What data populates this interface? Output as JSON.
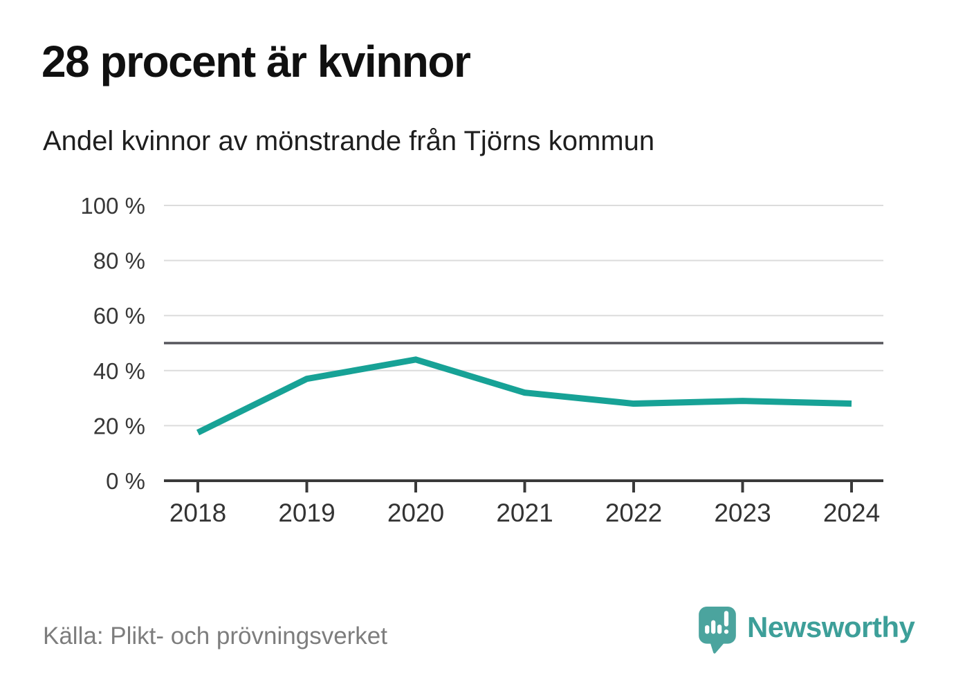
{
  "header": {
    "title": "28 procent är kvinnor",
    "subtitle": "Andel kvinnor av mönstrande från Tjörns kommun"
  },
  "footer": {
    "source": "Källa: Plikt- och prövningsverket",
    "brand_name": "Newsworthy"
  },
  "colors": {
    "line": "#17a296",
    "grid": "#dcdcdc",
    "reference_line": "#56565c",
    "axis": "#3a3a3a",
    "tick_text": "#383838",
    "title_text": "#101010",
    "subtitle_text": "#1e1e1e",
    "source_text": "#7d7d7d",
    "brand_teal": "#3d9f99",
    "brand_icon_teal": "#4ba49e"
  },
  "chart_data": {
    "type": "line",
    "title": "28 procent är kvinnor",
    "subtitle": "Andel kvinnor av mönstrande från Tjörns kommun",
    "categories": [
      "2018",
      "2019",
      "2020",
      "2021",
      "2022",
      "2023",
      "2024"
    ],
    "series": [
      {
        "name": "Andel kvinnor av mönstrande",
        "values": [
          17.5,
          37,
          44,
          32,
          28,
          29,
          28
        ]
      }
    ],
    "unit": "%",
    "ylim": [
      0,
      100
    ],
    "yticks": [
      0,
      20,
      40,
      60,
      80,
      100
    ],
    "ytick_labels": [
      "0 %",
      "20 %",
      "40 %",
      "60 %",
      "80 %",
      "100 %"
    ],
    "reference_line": 50,
    "grid": true,
    "legend": "none"
  }
}
